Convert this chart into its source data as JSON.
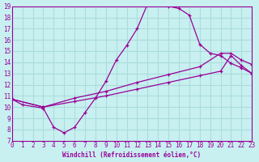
{
  "xlabel": "Windchill (Refroidissement éolien,°C)",
  "bg_color": "#c8f0f0",
  "line_color": "#990099",
  "grid_color": "#aadddd",
  "xlim": [
    0,
    23
  ],
  "ylim": [
    7,
    19
  ],
  "xticks": [
    0,
    1,
    2,
    3,
    4,
    5,
    6,
    7,
    8,
    9,
    10,
    11,
    12,
    13,
    14,
    15,
    16,
    17,
    18,
    19,
    20,
    21,
    22,
    23
  ],
  "yticks": [
    7,
    8,
    9,
    10,
    11,
    12,
    13,
    14,
    15,
    16,
    17,
    18,
    19
  ],
  "line1_x": [
    0,
    1,
    3,
    4,
    5,
    6,
    7,
    8,
    9,
    10,
    11,
    12,
    13,
    14,
    15,
    16,
    17,
    18,
    19,
    20,
    21,
    22,
    23
  ],
  "line1_y": [
    10.7,
    10.2,
    9.9,
    8.2,
    7.7,
    8.2,
    9.5,
    10.8,
    12.3,
    14.2,
    15.5,
    17.0,
    19.2,
    19.2,
    19.0,
    18.8,
    18.2,
    15.6,
    14.8,
    14.6,
    13.9,
    13.5,
    13.0
  ],
  "line2_x": [
    0,
    3,
    6,
    9,
    12,
    15,
    18,
    20,
    21,
    22,
    23
  ],
  "line2_y": [
    10.7,
    10.0,
    10.5,
    11.0,
    11.6,
    12.2,
    12.8,
    13.2,
    14.6,
    13.7,
    13.0
  ],
  "line3_x": [
    0,
    3,
    6,
    9,
    12,
    15,
    18,
    20,
    21,
    22,
    23
  ],
  "line3_y": [
    10.7,
    10.0,
    10.8,
    11.4,
    12.2,
    12.9,
    13.6,
    14.8,
    14.8,
    14.2,
    13.8
  ]
}
